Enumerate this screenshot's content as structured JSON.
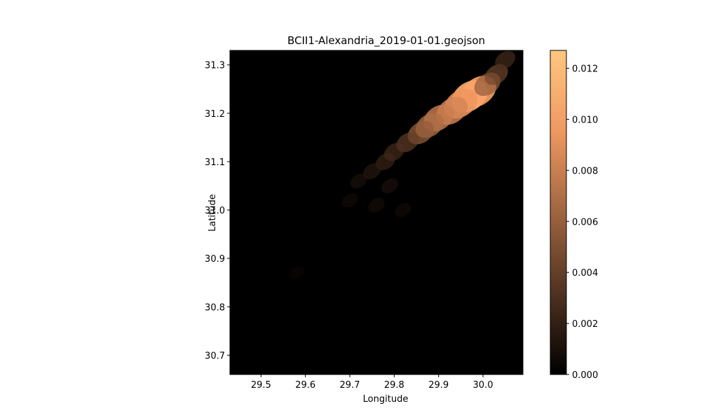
{
  "chart_data": {
    "type": "heatmap",
    "title": "BCII1-Alexandria_2019-01-01.geojson",
    "xlabel": "Longitude",
    "ylabel": "Latitude",
    "xlim": [
      29.43,
      30.09
    ],
    "ylim": [
      30.66,
      31.33
    ],
    "xticks": [
      29.5,
      29.6,
      29.7,
      29.8,
      29.9,
      30.0
    ],
    "xtick_labels": [
      "29.5",
      "29.6",
      "29.7",
      "29.8",
      "29.9",
      "30.0"
    ],
    "yticks": [
      30.7,
      30.8,
      30.9,
      31.0,
      31.1,
      31.2,
      31.3
    ],
    "ytick_labels": [
      "30.7",
      "30.8",
      "30.9",
      "31.0",
      "31.1",
      "31.2",
      "31.3"
    ],
    "colormap": "copper",
    "colorbar": {
      "min": 0.0,
      "max": 0.0127,
      "ticks": [
        0.0,
        0.002,
        0.004,
        0.006,
        0.008,
        0.01,
        0.012
      ],
      "tick_labels": [
        "0.000",
        "0.002",
        "0.004",
        "0.006",
        "0.008",
        "0.010",
        "0.012"
      ]
    },
    "grid": false,
    "background_value": 0.0,
    "hotspots": [
      {
        "lon": 29.97,
        "lat": 31.235,
        "value": 0.011
      },
      {
        "lon": 29.99,
        "lat": 31.245,
        "value": 0.0105
      },
      {
        "lon": 29.95,
        "lat": 31.22,
        "value": 0.0095
      },
      {
        "lon": 29.93,
        "lat": 31.205,
        "value": 0.0085
      },
      {
        "lon": 29.9,
        "lat": 31.19,
        "value": 0.008
      },
      {
        "lon": 29.88,
        "lat": 31.175,
        "value": 0.007
      },
      {
        "lon": 29.86,
        "lat": 31.16,
        "value": 0.006
      },
      {
        "lon": 30.01,
        "lat": 31.26,
        "value": 0.006
      },
      {
        "lon": 30.03,
        "lat": 31.28,
        "value": 0.0045
      },
      {
        "lon": 30.05,
        "lat": 31.31,
        "value": 0.003
      },
      {
        "lon": 29.83,
        "lat": 31.14,
        "value": 0.004
      },
      {
        "lon": 29.8,
        "lat": 31.12,
        "value": 0.003
      },
      {
        "lon": 29.78,
        "lat": 31.1,
        "value": 0.0025
      },
      {
        "lon": 29.75,
        "lat": 31.08,
        "value": 0.0018
      },
      {
        "lon": 29.72,
        "lat": 31.06,
        "value": 0.0012
      },
      {
        "lon": 29.79,
        "lat": 31.05,
        "value": 0.0012
      },
      {
        "lon": 29.76,
        "lat": 31.01,
        "value": 0.001
      },
      {
        "lon": 29.82,
        "lat": 31.0,
        "value": 0.0008
      },
      {
        "lon": 29.7,
        "lat": 31.02,
        "value": 0.0008
      },
      {
        "lon": 29.58,
        "lat": 30.87,
        "value": 0.0004
      }
    ]
  },
  "colors": {
    "background": "#000000",
    "colormap_low": "#000000",
    "colormap_high": "#ffc77f"
  }
}
